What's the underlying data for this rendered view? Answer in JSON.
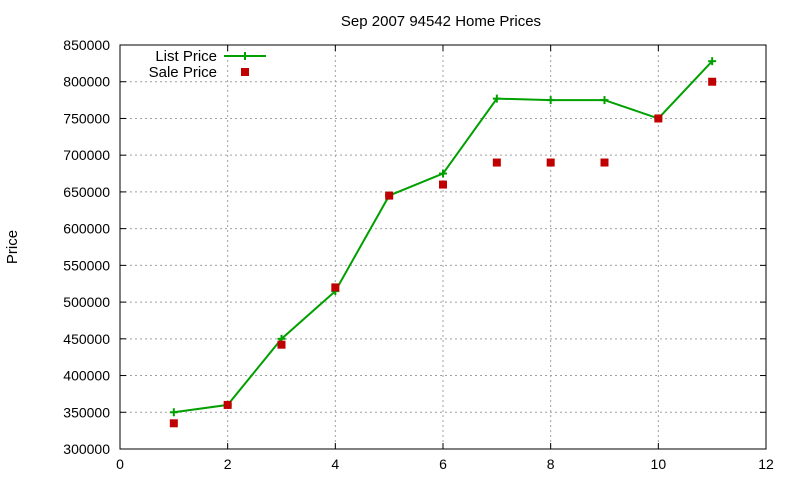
{
  "chart_data": {
    "type": "line",
    "title": "Sep 2007 94542 Home Prices",
    "xlabel": "",
    "ylabel": "Price",
    "xlim": [
      0,
      12
    ],
    "ylim": [
      300000,
      850000
    ],
    "x_ticks": [
      0,
      2,
      4,
      6,
      8,
      10,
      12
    ],
    "y_ticks": [
      300000,
      350000,
      400000,
      450000,
      500000,
      550000,
      600000,
      650000,
      700000,
      750000,
      800000,
      850000
    ],
    "grid": true,
    "legend_position": "top-left",
    "series": [
      {
        "name": "List Price",
        "style": "linespoints",
        "marker": "plus",
        "color": "#00a000",
        "x": [
          1,
          2,
          3,
          4,
          5,
          6,
          7,
          8,
          9,
          10,
          11
        ],
        "values": [
          350000,
          360000,
          450000,
          515000,
          645000,
          675000,
          777000,
          775000,
          775000,
          750000,
          828000
        ]
      },
      {
        "name": "Sale Price",
        "style": "points",
        "marker": "square",
        "color": "#c00000",
        "x": [
          1,
          2,
          3,
          4,
          5,
          6,
          7,
          8,
          9,
          10,
          11
        ],
        "values": [
          335000,
          360000,
          442000,
          520000,
          645000,
          660000,
          690000,
          690000,
          690000,
          750000,
          800000
        ]
      }
    ]
  }
}
